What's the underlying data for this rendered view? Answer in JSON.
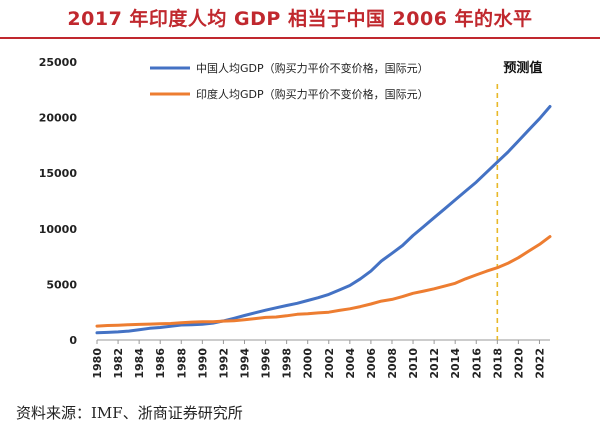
{
  "title": "2017 年印度人均 GDP 相当于中国 2006 年的水平",
  "source": "资料来源：IMF、浙商证券研究所",
  "colors": {
    "title": "#c0282e",
    "china": "#4472c4",
    "india": "#ed7d31",
    "forecast_line": "#e8b828"
  },
  "chart_data": {
    "type": "line",
    "xlabel": "",
    "ylabel": "",
    "xlim": [
      1980,
      2023
    ],
    "ylim": [
      0,
      25000
    ],
    "yticks": [
      0,
      5000,
      10000,
      15000,
      20000,
      25000
    ],
    "xticks": [
      1980,
      1982,
      1984,
      1986,
      1988,
      1990,
      1992,
      1994,
      1996,
      1998,
      2000,
      2002,
      2004,
      2006,
      2008,
      2010,
      2012,
      2014,
      2016,
      2018,
      2020,
      2022
    ],
    "grid": false,
    "legend_position": "top-center",
    "annotations": [
      {
        "type": "vline",
        "x": 2018,
        "label": "预测值"
      }
    ],
    "series": [
      {
        "name": "中国人均GDP（购买力平价不变价格，国际元）",
        "color": "#4472c4",
        "x": [
          1980,
          1981,
          1982,
          1983,
          1984,
          1985,
          1986,
          1987,
          1988,
          1989,
          1990,
          1991,
          1992,
          1993,
          1994,
          1995,
          1996,
          1997,
          1998,
          1999,
          2000,
          2001,
          2002,
          2003,
          2004,
          2005,
          2006,
          2007,
          2008,
          2009,
          2010,
          2011,
          2012,
          2013,
          2014,
          2015,
          2016,
          2017,
          2018,
          2019,
          2020,
          2021,
          2022,
          2023
        ],
        "y": [
          650,
          680,
          730,
          800,
          920,
          1050,
          1120,
          1230,
          1350,
          1380,
          1420,
          1520,
          1720,
          1950,
          2200,
          2450,
          2680,
          2900,
          3100,
          3300,
          3550,
          3800,
          4100,
          4500,
          4900,
          5500,
          6200,
          7100,
          7800,
          8500,
          9400,
          10200,
          11000,
          11800,
          12600,
          13400,
          14200,
          15100,
          16000,
          16900,
          17900,
          18900,
          19900,
          21000
        ]
      },
      {
        "name": "印度人均GDP（购买力平价不变价格，国际元）",
        "color": "#ed7d31",
        "x": [
          1980,
          1981,
          1982,
          1983,
          1984,
          1985,
          1986,
          1987,
          1988,
          1989,
          1990,
          1991,
          1992,
          1993,
          1994,
          1995,
          1996,
          1997,
          1998,
          1999,
          2000,
          2001,
          2002,
          2003,
          2004,
          2005,
          2006,
          2007,
          2008,
          2009,
          2010,
          2011,
          2012,
          2013,
          2014,
          2015,
          2016,
          2017,
          2018,
          2019,
          2020,
          2021,
          2022,
          2023
        ],
        "y": [
          1250,
          1300,
          1330,
          1380,
          1400,
          1430,
          1460,
          1480,
          1560,
          1610,
          1650,
          1640,
          1700,
          1740,
          1820,
          1920,
          2030,
          2070,
          2180,
          2310,
          2360,
          2440,
          2500,
          2660,
          2810,
          3000,
          3240,
          3500,
          3650,
          3900,
          4200,
          4400,
          4600,
          4850,
          5100,
          5500,
          5850,
          6200,
          6500,
          6900,
          7400,
          8000,
          8600,
          9300
        ]
      }
    ],
    "forecast_label": "预测值"
  }
}
